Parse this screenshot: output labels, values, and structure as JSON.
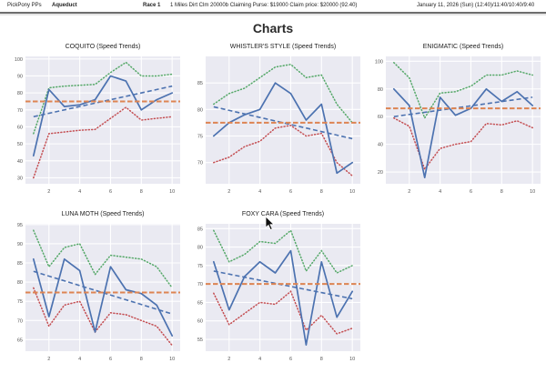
{
  "header": {
    "app": "PickPony PPs",
    "track": "Aqueduct",
    "race": "Race 1",
    "conditions": "1 Miles Dirt Clm 20000b Claiming Purse: $19000 Claim price: $20000 (92.40)",
    "datetime": "January 11, 2026 (Sun) (12:40)/11:40/10:40/9:40"
  },
  "page_title": "Charts",
  "colors": {
    "actual": "#4C72B0",
    "high": "#55A868",
    "low": "#C44E52",
    "average": "#DD8452",
    "trend": "#4C72B0",
    "plot_bg": "#EAEAF2",
    "grid": "#FFFFFF",
    "tick_label": "#555555",
    "title": "#222222"
  },
  "chart_data": [
    {
      "type": "line",
      "title": "COQUITO (Speed Trends)",
      "xlabel": "",
      "ylabel": "",
      "x": [
        1,
        2,
        3,
        4,
        5,
        6,
        7,
        8,
        9,
        10
      ],
      "xticks": [
        2,
        4,
        6,
        8,
        10
      ],
      "yticks": [
        30,
        40,
        50,
        60,
        70,
        80,
        90,
        100
      ],
      "ylim": [
        26.5,
        101.5
      ],
      "series": [
        {
          "name": "speed",
          "style": "solid",
          "color_key": "actual",
          "values": [
            43,
            82,
            72,
            73,
            76,
            90,
            87,
            70,
            76,
            80
          ]
        },
        {
          "name": "high",
          "style": "dotted",
          "color_key": "high",
          "values": [
            56,
            83,
            84,
            84.5,
            85,
            92,
            98,
            90,
            90,
            91
          ]
        },
        {
          "name": "low",
          "style": "dotted",
          "color_key": "low",
          "values": [
            30,
            56,
            57,
            58,
            58.5,
            65,
            71.5,
            64,
            65,
            66
          ]
        }
      ],
      "trend_line": {
        "start": 66,
        "end": 84
      },
      "average_line": 75
    },
    {
      "type": "line",
      "title": "WHISTLER'S STYLE (Speed Trends)",
      "xlabel": "",
      "ylabel": "",
      "x": [
        1,
        2,
        3,
        4,
        5,
        6,
        7,
        8,
        9,
        10
      ],
      "xticks": [
        2,
        4,
        6,
        8,
        10
      ],
      "yticks": [
        70,
        75,
        80,
        85
      ],
      "ylim": [
        66,
        90
      ],
      "series": [
        {
          "name": "speed",
          "style": "solid",
          "color_key": "actual",
          "values": [
            75,
            77.5,
            79,
            80,
            85,
            83,
            78,
            81,
            68,
            70
          ]
        },
        {
          "name": "high",
          "style": "dotted",
          "color_key": "high",
          "values": [
            81,
            83,
            84,
            86,
            88,
            88.5,
            86,
            86.5,
            81,
            77.5
          ]
        },
        {
          "name": "low",
          "style": "dotted",
          "color_key": "low",
          "values": [
            70,
            71,
            73,
            74,
            76.5,
            77,
            75,
            75.5,
            70,
            67.5
          ]
        }
      ],
      "trend_line": {
        "start": 80.5,
        "end": 74.5
      },
      "average_line": 77.5
    },
    {
      "type": "line",
      "title": "ENIGMATIC (Speed Trends)",
      "xlabel": "",
      "ylabel": "",
      "x": [
        1,
        2,
        3,
        4,
        5,
        6,
        7,
        8,
        9,
        10
      ],
      "xticks": [
        2,
        4,
        6,
        8,
        10
      ],
      "yticks": [
        20,
        40,
        60,
        80,
        100
      ],
      "ylim": [
        11.5,
        103.5
      ],
      "series": [
        {
          "name": "speed",
          "style": "solid",
          "color_key": "actual",
          "values": [
            80,
            68,
            16,
            74,
            61,
            66,
            80,
            71,
            78,
            68
          ]
        },
        {
          "name": "high",
          "style": "dotted",
          "color_key": "high",
          "values": [
            99,
            88,
            59,
            77,
            78,
            82,
            90,
            90,
            93,
            90
          ]
        },
        {
          "name": "low",
          "style": "dotted",
          "color_key": "low",
          "values": [
            59,
            53,
            22,
            37,
            40,
            42,
            55,
            54,
            57,
            52
          ]
        }
      ],
      "trend_line": {
        "start": 60,
        "end": 74
      },
      "average_line": 66
    },
    {
      "type": "line",
      "title": "LUNA MOTH (Speed Trends)",
      "xlabel": "",
      "ylabel": "",
      "x": [
        1,
        2,
        3,
        4,
        5,
        6,
        7,
        8,
        9,
        10
      ],
      "xticks": [
        2,
        4,
        6,
        8,
        10
      ],
      "yticks": [
        65,
        70,
        75,
        80,
        85,
        90,
        95
      ],
      "ylim": [
        62,
        95.2
      ],
      "series": [
        {
          "name": "speed",
          "style": "solid",
          "color_key": "actual",
          "values": [
            86,
            71,
            86,
            83,
            67,
            84,
            78,
            77,
            74,
            66
          ]
        },
        {
          "name": "high",
          "style": "dotted",
          "color_key": "high",
          "values": [
            93.5,
            84,
            89,
            90,
            82,
            87,
            86.5,
            86,
            84,
            78.5
          ]
        },
        {
          "name": "low",
          "style": "dotted",
          "color_key": "low",
          "values": [
            78.5,
            68.5,
            74,
            75,
            67,
            72,
            71.5,
            70,
            68.5,
            63.5
          ]
        }
      ],
      "trend_line": {
        "start": 82.8,
        "end": 71.7
      },
      "average_line": 77.3
    },
    {
      "type": "line",
      "title": "FOXY CARA (Speed Trends)",
      "xlabel": "",
      "ylabel": "",
      "x": [
        1,
        2,
        3,
        4,
        5,
        6,
        7,
        8,
        9,
        10
      ],
      "xticks": [
        2,
        4,
        6,
        8,
        10
      ],
      "yticks": [
        55,
        60,
        65,
        70,
        75,
        80,
        85
      ],
      "ylim": [
        51.8,
        86.3
      ],
      "series": [
        {
          "name": "speed",
          "style": "solid",
          "color_key": "actual",
          "values": [
            76,
            63,
            72,
            76,
            73,
            79,
            53.5,
            76,
            61,
            68
          ]
        },
        {
          "name": "high",
          "style": "dotted",
          "color_key": "high",
          "values": [
            84.5,
            76,
            78,
            81.5,
            81,
            84.5,
            73.5,
            79,
            73,
            75
          ]
        },
        {
          "name": "low",
          "style": "dotted",
          "color_key": "low",
          "values": [
            67.5,
            59,
            62,
            65,
            64.5,
            68,
            57.5,
            61.5,
            56.5,
            58
          ]
        }
      ],
      "trend_line": {
        "start": 73.5,
        "end": 66
      },
      "average_line": 70
    }
  ]
}
